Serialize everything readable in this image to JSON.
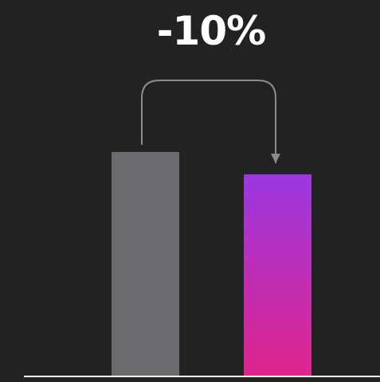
{
  "chart_data": {
    "type": "bar",
    "categories": [
      "",
      ""
    ],
    "values": [
      100,
      90
    ],
    "ylim": [
      0,
      100
    ],
    "annotation": {
      "text": "-10%",
      "from_category_index": 0,
      "to_category_index": 1
    },
    "colors": {
      "background": "#212322",
      "bar_1": "#6b6c6f",
      "bar_2_top": "#9b38e0",
      "bar_2_bottom": "#e0248c",
      "arrow": "#8a8b8d",
      "baseline": "#ffffff"
    }
  }
}
